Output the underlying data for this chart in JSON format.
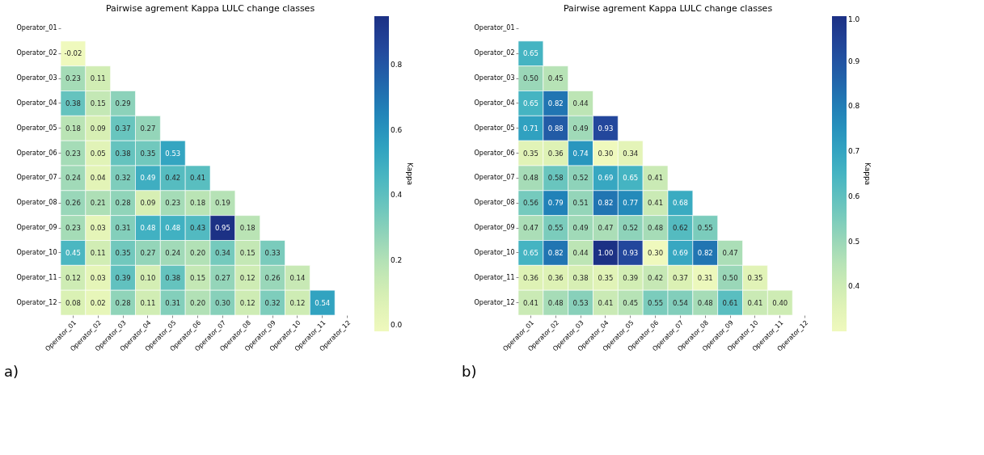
{
  "chart_data": [
    {
      "type": "heatmap",
      "title": "Pairwise agrement Kappa LULC change classes",
      "clabel": "Kappa",
      "annotations": [
        "a)"
      ],
      "data_labels": true,
      "grid": false,
      "categories": [
        "Operator_01",
        "Operator_02",
        "Operator_03",
        "Operator_04",
        "Operator_05",
        "Operator_06",
        "Operator_07",
        "Operator_08",
        "Operator_09",
        "Operator_10",
        "Operator_11",
        "Operator_12"
      ],
      "y_categories": [
        "Operator_01",
        "Operator_02",
        "Operator_03",
        "Operator_04",
        "Operator_05",
        "Operator_06",
        "Operator_07",
        "Operator_08",
        "Operator_09",
        "Operator_10",
        "Operator_11",
        "Operator_12"
      ],
      "clim": [
        -0.02,
        0.95
      ],
      "cticks": [
        {
          "value": 0,
          "label": "0.0"
        },
        0.2,
        0.4,
        0.6,
        0.8
      ],
      "cell_labels": [
        [
          null,
          null,
          null,
          null,
          null,
          null,
          null,
          null,
          null,
          null,
          null,
          null
        ],
        [
          "-0.02",
          null,
          null,
          null,
          null,
          null,
          null,
          null,
          null,
          null,
          null,
          null
        ],
        [
          "0.23",
          "0.11",
          null,
          null,
          null,
          null,
          null,
          null,
          null,
          null,
          null,
          null
        ],
        [
          "0.38",
          "0.15",
          "0.29",
          null,
          null,
          null,
          null,
          null,
          null,
          null,
          null,
          null
        ],
        [
          "0.18",
          "0.09",
          "0.37",
          "0.27",
          null,
          null,
          null,
          null,
          null,
          null,
          null,
          null
        ],
        [
          "0.23",
          "0.05",
          "0.38",
          "0.35",
          "0.53",
          null,
          null,
          null,
          null,
          null,
          null,
          null
        ],
        [
          "0.24",
          "0.04",
          "0.32",
          "0.49",
          "0.42",
          "0.41",
          null,
          null,
          null,
          null,
          null,
          null
        ],
        [
          "0.26",
          "0.21",
          "0.28",
          "0.09",
          "0.23",
          "0.18",
          "0.19",
          null,
          null,
          null,
          null,
          null
        ],
        [
          "0.23",
          "0.03",
          "0.31",
          "0.48",
          "0.48",
          "0.43",
          "0.95",
          "0.18",
          null,
          null,
          null,
          null
        ],
        [
          "0.45",
          "0.11",
          "0.35",
          "0.27",
          "0.24",
          "0.20",
          "0.34",
          "0.15",
          "0.33",
          null,
          null,
          null
        ],
        [
          "0.12",
          "0.03",
          "0.39",
          "0.10",
          "0.38",
          "0.15",
          "0.27",
          "0.12",
          "0.26",
          "0.14",
          null,
          null
        ],
        [
          "0.08",
          "0.02",
          "0.28",
          "0.11",
          "0.31",
          "0.20",
          "0.30",
          "0.12",
          "0.32",
          "0.12",
          "0.54",
          null
        ]
      ],
      "cells": [
        [
          null,
          null,
          null,
          null,
          null,
          null,
          null,
          null,
          null,
          null,
          null,
          null
        ],
        [
          -0.02,
          null,
          null,
          null,
          null,
          null,
          null,
          null,
          null,
          null,
          null,
          null
        ],
        [
          0.23,
          0.11,
          null,
          null,
          null,
          null,
          null,
          null,
          null,
          null,
          null,
          null
        ],
        [
          0.38,
          0.15,
          0.29,
          null,
          null,
          null,
          null,
          null,
          null,
          null,
          null,
          null
        ],
        [
          0.18,
          0.09,
          0.37,
          0.27,
          null,
          null,
          null,
          null,
          null,
          null,
          null,
          null
        ],
        [
          0.23,
          0.05,
          0.38,
          0.35,
          0.53,
          null,
          null,
          null,
          null,
          null,
          null,
          null
        ],
        [
          0.24,
          0.04,
          0.32,
          0.49,
          0.42,
          0.41,
          null,
          null,
          null,
          null,
          null,
          null
        ],
        [
          0.26,
          0.21,
          0.28,
          0.09,
          0.23,
          0.18,
          0.19,
          null,
          null,
          null,
          null,
          null
        ],
        [
          0.23,
          0.03,
          0.31,
          0.48,
          0.48,
          0.43,
          0.95,
          0.18,
          null,
          null,
          null,
          null
        ],
        [
          0.45,
          0.11,
          0.35,
          0.27,
          0.24,
          0.2,
          0.34,
          0.15,
          0.33,
          null,
          null,
          null
        ],
        [
          0.12,
          0.03,
          0.39,
          0.1,
          0.38,
          0.15,
          0.27,
          0.12,
          0.26,
          0.14,
          null,
          null
        ],
        [
          0.08,
          0.02,
          0.28,
          0.11,
          0.31,
          0.2,
          0.3,
          0.12,
          0.32,
          0.12,
          0.54,
          null
        ]
      ]
    },
    {
      "type": "heatmap",
      "title": "Pairwise agrement Kappa LULC change classes",
      "clabel": "Kappa",
      "annotations": [
        "b)"
      ],
      "data_labels": true,
      "grid": false,
      "categories": [
        "Operator_01",
        "Operator_02",
        "Operator_03",
        "Operator_04",
        "Operator_05",
        "Operator_06",
        "Operator_07",
        "Operator_08",
        "Operator_09",
        "Operator_10",
        "Operator_11",
        "Operator_12"
      ],
      "y_categories": [
        "Operator_01",
        "Operator_02",
        "Operator_03",
        "Operator_04",
        "Operator_05",
        "Operator_06",
        "Operator_07",
        "Operator_08",
        "Operator_09",
        "Operator_10",
        "Operator_11",
        "Operator_12"
      ],
      "clim": [
        0.3,
        1.0
      ],
      "cticks": [
        0.4,
        0.5,
        0.6,
        0.7,
        0.8,
        0.9,
        {
          "value": 1,
          "label": "1.0"
        }
      ],
      "cell_labels": [
        [
          null,
          null,
          null,
          null,
          null,
          null,
          null,
          null,
          null,
          null,
          null,
          null
        ],
        [
          "0.65",
          null,
          null,
          null,
          null,
          null,
          null,
          null,
          null,
          null,
          null,
          null
        ],
        [
          "0.50",
          "0.45",
          null,
          null,
          null,
          null,
          null,
          null,
          null,
          null,
          null,
          null
        ],
        [
          "0.65",
          "0.82",
          "0.44",
          null,
          null,
          null,
          null,
          null,
          null,
          null,
          null,
          null
        ],
        [
          "0.71",
          "0.88",
          "0.49",
          "0.93",
          null,
          null,
          null,
          null,
          null,
          null,
          null,
          null
        ],
        [
          "0.35",
          "0.36",
          "0.74",
          "0.30",
          "0.34",
          null,
          null,
          null,
          null,
          null,
          null,
          null
        ],
        [
          "0.48",
          "0.58",
          "0.52",
          "0.69",
          "0.65",
          "0.41",
          null,
          null,
          null,
          null,
          null,
          null
        ],
        [
          "0.56",
          "0.79",
          "0.51",
          "0.82",
          "0.77",
          "0.41",
          "0.68",
          null,
          null,
          null,
          null,
          null
        ],
        [
          "0.47",
          "0.55",
          "0.49",
          "0.47",
          "0.52",
          "0.48",
          "0.62",
          "0.55",
          null,
          null,
          null,
          null
        ],
        [
          "0.65",
          "0.82",
          "0.44",
          "1.00",
          "0.93",
          "0.30",
          "0.69",
          "0.82",
          "0.47",
          null,
          null,
          null
        ],
        [
          "0.36",
          "0.36",
          "0.38",
          "0.35",
          "0.39",
          "0.42",
          "0.37",
          "0.31",
          "0.50",
          "0.35",
          null,
          null
        ],
        [
          "0.41",
          "0.48",
          "0.53",
          "0.41",
          "0.45",
          "0.55",
          "0.54",
          "0.48",
          "0.61",
          "0.41",
          "0.40",
          null
        ]
      ],
      "cells": [
        [
          null,
          null,
          null,
          null,
          null,
          null,
          null,
          null,
          null,
          null,
          null,
          null
        ],
        [
          0.65,
          null,
          null,
          null,
          null,
          null,
          null,
          null,
          null,
          null,
          null,
          null
        ],
        [
          0.5,
          0.45,
          null,
          null,
          null,
          null,
          null,
          null,
          null,
          null,
          null,
          null
        ],
        [
          0.65,
          0.82,
          0.44,
          null,
          null,
          null,
          null,
          null,
          null,
          null,
          null,
          null
        ],
        [
          0.71,
          0.88,
          0.49,
          0.93,
          null,
          null,
          null,
          null,
          null,
          null,
          null,
          null
        ],
        [
          0.35,
          0.36,
          0.74,
          0.3,
          0.34,
          null,
          null,
          null,
          null,
          null,
          null,
          null
        ],
        [
          0.48,
          0.58,
          0.52,
          0.69,
          0.65,
          0.41,
          null,
          null,
          null,
          null,
          null,
          null
        ],
        [
          0.56,
          0.79,
          0.51,
          0.82,
          0.77,
          0.41,
          0.68,
          null,
          null,
          null,
          null,
          null
        ],
        [
          0.47,
          0.55,
          0.49,
          0.47,
          0.52,
          0.48,
          0.62,
          0.55,
          null,
          null,
          null,
          null
        ],
        [
          0.65,
          0.82,
          0.44,
          1.0,
          0.93,
          0.3,
          0.69,
          0.82,
          0.47,
          null,
          null,
          null
        ],
        [
          0.36,
          0.36,
          0.38,
          0.35,
          0.39,
          0.42,
          0.37,
          0.31,
          0.5,
          0.35,
          null,
          null
        ],
        [
          0.41,
          0.48,
          0.53,
          0.41,
          0.45,
          0.55,
          0.54,
          0.48,
          0.61,
          0.41,
          0.4,
          null
        ]
      ]
    }
  ]
}
